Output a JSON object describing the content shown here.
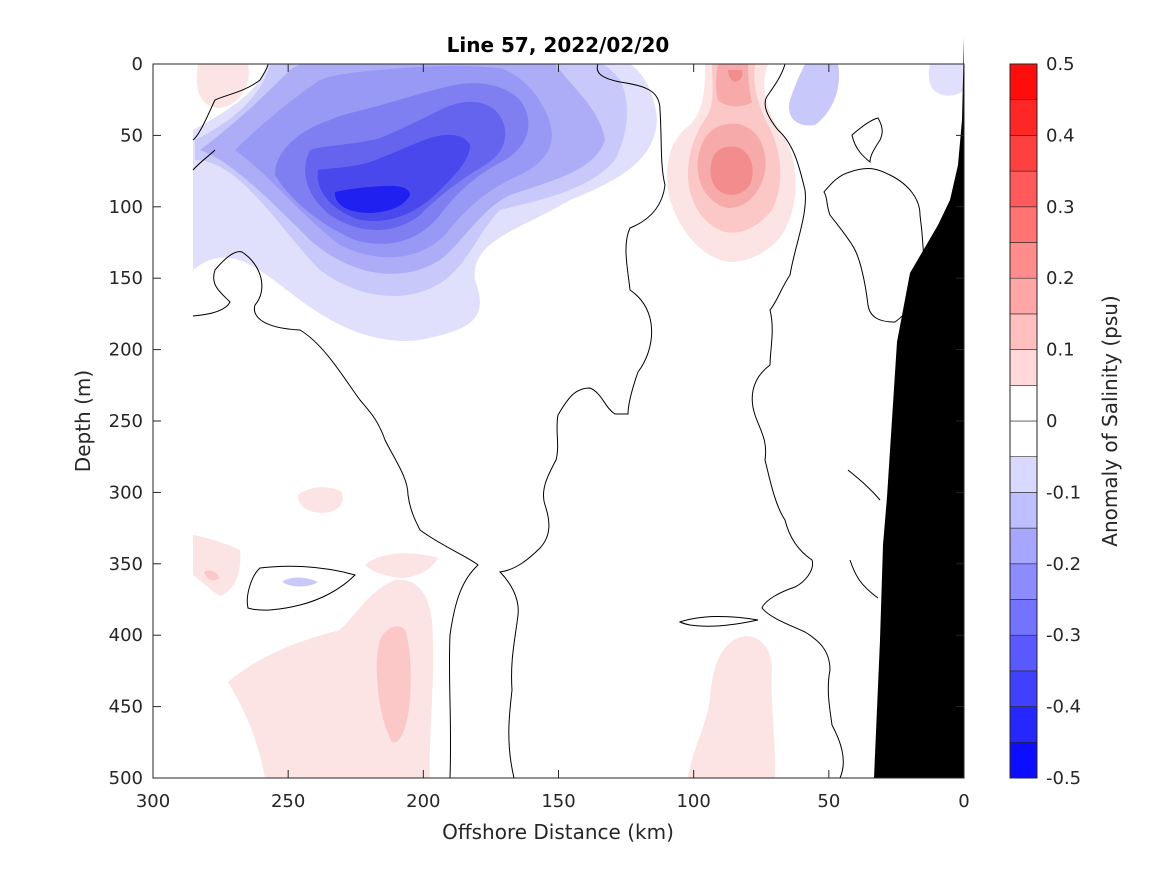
{
  "chart_data": {
    "type": "heatmap",
    "subtype": "filled-contour section",
    "title": "Line 57, 2022/02/20",
    "xlabel": "Offshore Distance (km)",
    "ylabel": "Depth (m)",
    "colorbar_label": "Anomaly of Salinity (psu)",
    "xlim": [
      300,
      0
    ],
    "x_reversed": true,
    "ylim": [
      0,
      500
    ],
    "y_reversed": true,
    "x_ticks": [
      "300",
      "250",
      "200",
      "150",
      "100",
      "50",
      "0"
    ],
    "y_ticks": [
      "0",
      "50",
      "100",
      "150",
      "200",
      "250",
      "300",
      "350",
      "400",
      "450",
      "500"
    ],
    "colorbar": {
      "range": [
        -0.5,
        0.5
      ],
      "step": 0.05,
      "tick_labels": [
        "0.5",
        "0.4",
        "0.3",
        "0.2",
        "0.1",
        "0",
        "-0.1",
        "-0.2",
        "-0.3",
        "-0.4",
        "-0.5"
      ],
      "negative_color": "#0000ff",
      "positive_color": "#ff0000",
      "zero_color": "#ffffff"
    },
    "grid": false,
    "bathymetry_color": "#000000",
    "features": [
      {
        "kind": "fresh anomaly",
        "x_center": 215,
        "depth_center": 95,
        "min_value": -0.45
      },
      {
        "kind": "salty anomaly",
        "x_center": 85,
        "depth_center": 75,
        "max_value": 0.25
      },
      {
        "kind": "salty anomaly",
        "x_center": 210,
        "depth_center": 430,
        "max_value": 0.15
      },
      {
        "kind": "salty anomaly",
        "x_center": 85,
        "depth_center": 460,
        "max_value": 0.1
      }
    ]
  }
}
